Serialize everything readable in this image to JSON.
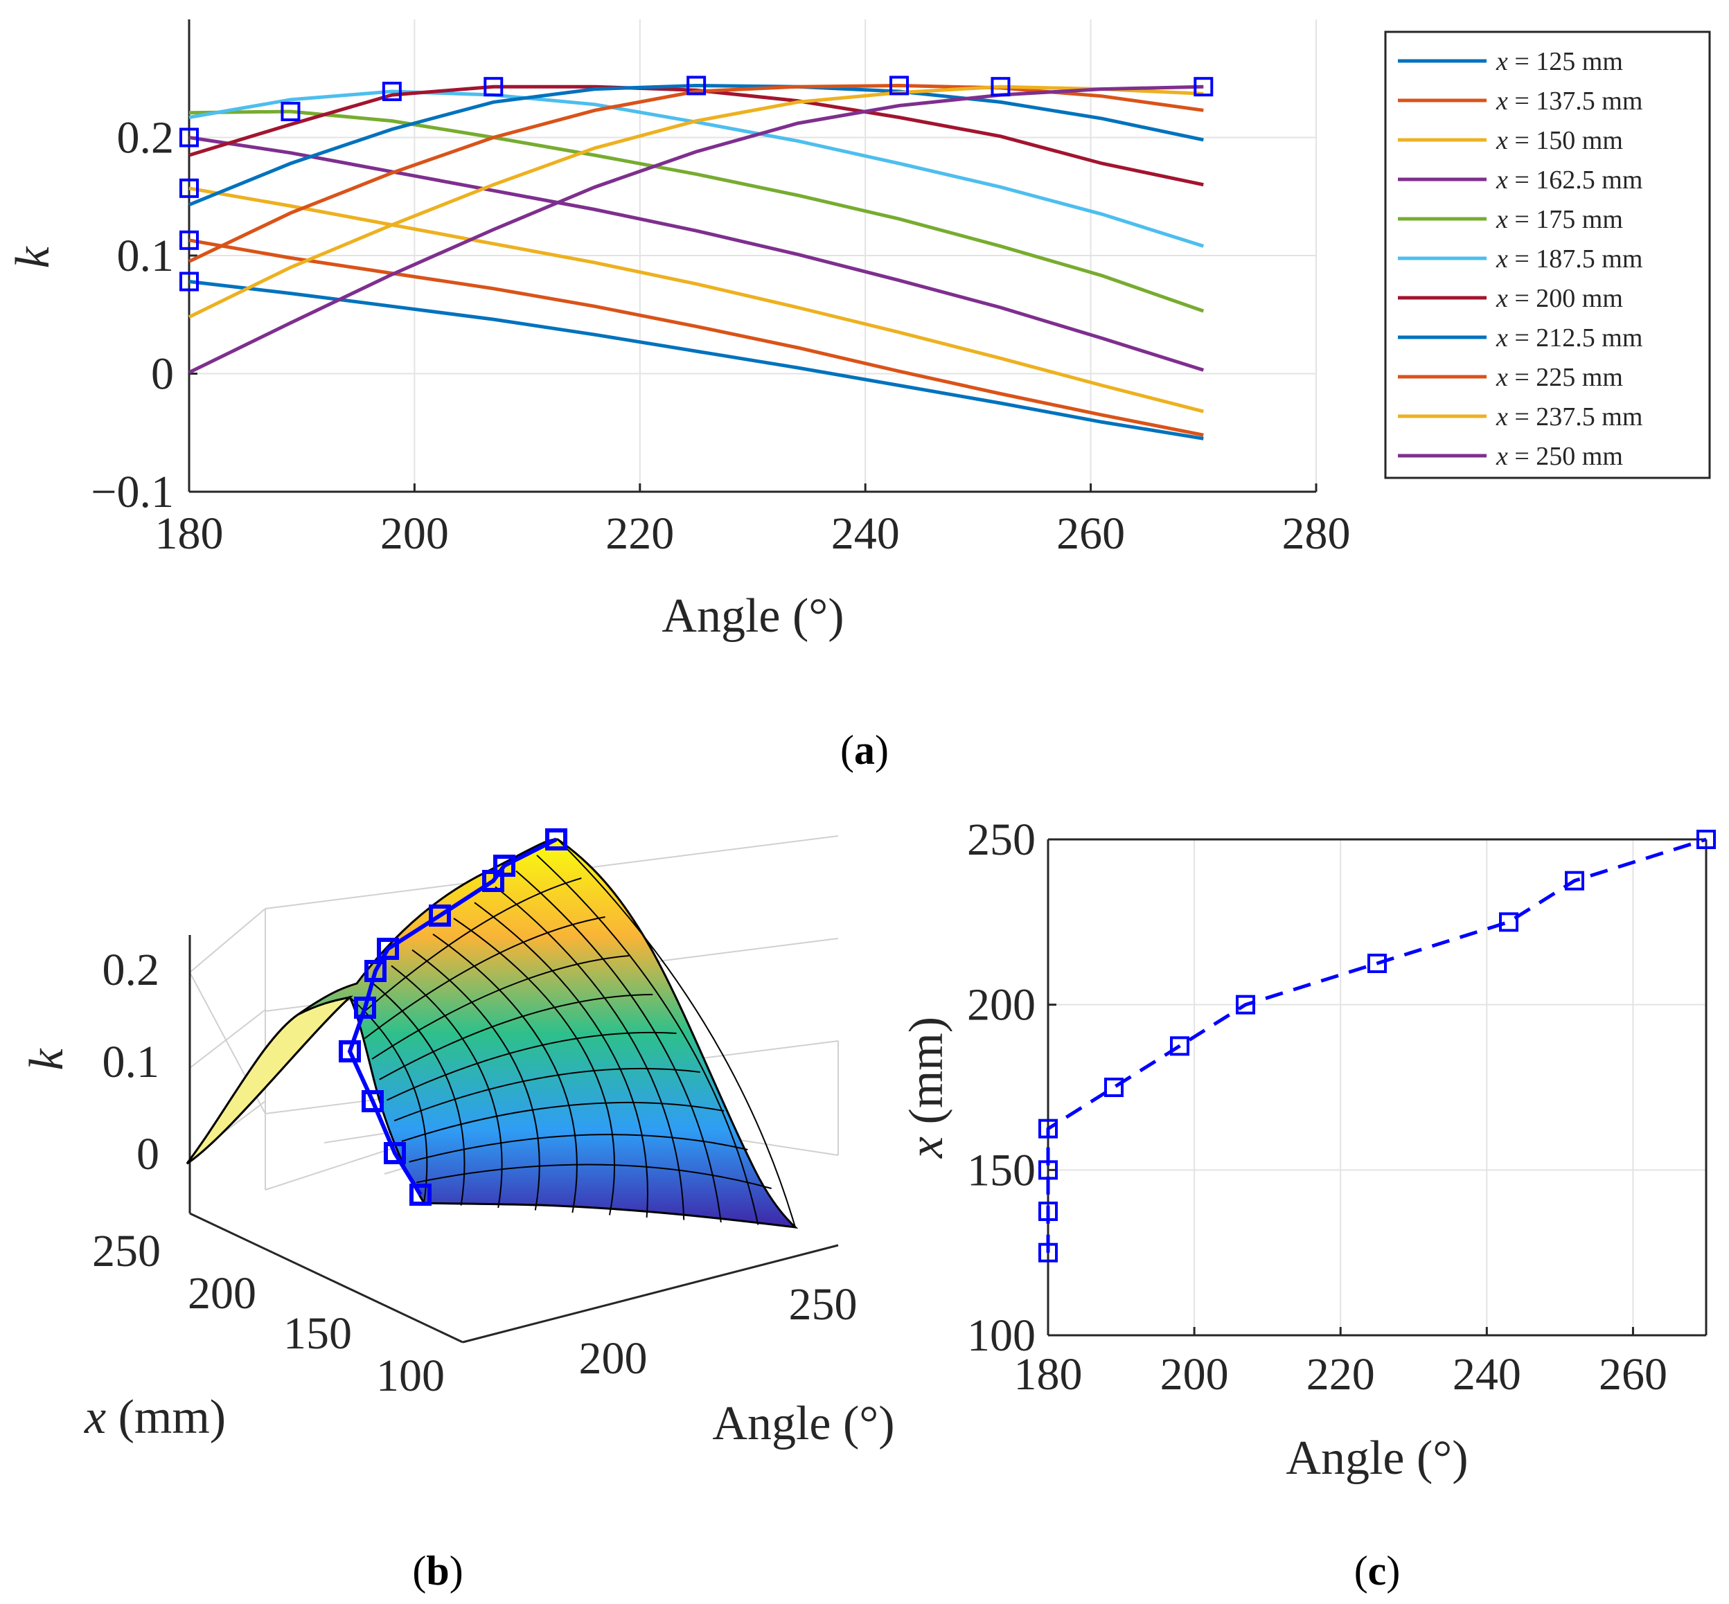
{
  "chart_data": [
    {
      "panel": "(a)",
      "type": "line",
      "xlabel": "Angle (°)",
      "ylabel": "k",
      "xlim": [
        180,
        280
      ],
      "ylim": [
        -0.1,
        0.3
      ],
      "xticks": [
        "180",
        "200",
        "220",
        "240",
        "260",
        "280"
      ],
      "yticks": [
        "−0.1",
        "0",
        "0.1",
        "0.2"
      ],
      "ytick_values": [
        -0.1,
        0,
        0.1,
        0.2
      ],
      "grid": true,
      "legend_position": "outside-right",
      "x": [
        180,
        189,
        198,
        207,
        216,
        225,
        234,
        243,
        252,
        261,
        270
      ],
      "series": [
        {
          "name": "x = 125 mm",
          "var": "x",
          "rest": " = 125 mm",
          "color": "#0072BD",
          "values": [
            0.078,
            0.068,
            0.057,
            0.046,
            0.033,
            0.019,
            0.005,
            -0.01,
            -0.025,
            -0.041,
            -0.055
          ]
        },
        {
          "name": "x = 137.5 mm",
          "var": "x",
          "rest": " = 137.5 mm",
          "color": "#D95319",
          "values": [
            0.113,
            0.098,
            0.085,
            0.072,
            0.057,
            0.04,
            0.022,
            0.002,
            -0.017,
            -0.035,
            -0.052
          ]
        },
        {
          "name": "x = 150 mm",
          "var": "x",
          "rest": " = 150 mm",
          "color": "#EDB120",
          "values": [
            0.157,
            0.142,
            0.126,
            0.11,
            0.094,
            0.076,
            0.056,
            0.035,
            0.013,
            -0.01,
            -0.032
          ]
        },
        {
          "name": "x = 162.5 mm",
          "var": "x",
          "rest": " = 162.5 mm",
          "color": "#7E2F8E",
          "values": [
            0.2,
            0.187,
            0.171,
            0.155,
            0.139,
            0.121,
            0.101,
            0.079,
            0.056,
            0.03,
            0.003
          ]
        },
        {
          "name": "x = 175 mm",
          "var": "x",
          "rest": " = 175 mm",
          "color": "#77AC30",
          "values": [
            0.221,
            0.222,
            0.214,
            0.2,
            0.185,
            0.169,
            0.151,
            0.131,
            0.108,
            0.083,
            0.053
          ]
        },
        {
          "name": "x = 187.5 mm",
          "var": "x",
          "rest": " = 187.5 mm",
          "color": "#4DBEEE",
          "values": [
            0.217,
            0.232,
            0.239,
            0.236,
            0.228,
            0.213,
            0.197,
            0.178,
            0.158,
            0.135,
            0.108
          ]
        },
        {
          "name": "x = 200 mm",
          "var": "x",
          "rest": " = 200 mm",
          "color": "#A2142F",
          "values": [
            0.185,
            0.211,
            0.236,
            0.243,
            0.243,
            0.24,
            0.231,
            0.217,
            0.201,
            0.178,
            0.16
          ]
        },
        {
          "name": "x = 212.5 mm",
          "var": "x",
          "rest": " = 212.5 mm",
          "color": "#0072BD",
          "values": [
            0.143,
            0.178,
            0.207,
            0.23,
            0.241,
            0.244,
            0.243,
            0.239,
            0.23,
            0.216,
            0.198
          ]
        },
        {
          "name": "x = 225 mm",
          "var": "x",
          "rest": " = 225 mm",
          "color": "#D95319",
          "values": [
            0.095,
            0.136,
            0.17,
            0.2,
            0.223,
            0.239,
            0.243,
            0.244,
            0.242,
            0.235,
            0.223
          ]
        },
        {
          "name": "x = 237.5 mm",
          "var": "x",
          "rest": " = 237.5 mm",
          "color": "#EDB120",
          "values": [
            0.048,
            0.09,
            0.126,
            0.16,
            0.191,
            0.214,
            0.23,
            0.238,
            0.243,
            0.241,
            0.237
          ]
        },
        {
          "name": "x = 250 mm",
          "var": "x",
          "rest": " = 250 mm",
          "color": "#7E2F8E",
          "values": [
            0.001,
            0.043,
            0.084,
            0.122,
            0.158,
            0.188,
            0.212,
            0.227,
            0.236,
            0.241,
            0.243
          ]
        }
      ],
      "markers": {
        "color": "#0000FF",
        "x": [
          180,
          180,
          180,
          180,
          189,
          198,
          207,
          225,
          243,
          252,
          270
        ],
        "y": [
          0.078,
          0.113,
          0.157,
          0.2,
          0.222,
          0.239,
          0.243,
          0.244,
          0.244,
          0.243,
          0.243
        ]
      }
    },
    {
      "panel": "(b)",
      "type": "surface",
      "xlabel": "Angle (°)",
      "ylabel_var": "x",
      "ylabel_rest": " (mm)",
      "zlabel": "k",
      "zticks": [
        "0",
        "0.1",
        "0.2"
      ],
      "xticks": [
        "200",
        "250"
      ],
      "yticks": [
        "100",
        "150",
        "200",
        "250"
      ]
    },
    {
      "panel": "(c)",
      "type": "line",
      "xlabel": "Angle (°)",
      "ylabel_var": "x",
      "ylabel_rest": " (mm)",
      "xlim": [
        180,
        270
      ],
      "ylim": [
        100,
        250
      ],
      "xticks": [
        "180",
        "200",
        "220",
        "240",
        "260"
      ],
      "xtick_values": [
        180,
        200,
        220,
        240,
        260
      ],
      "yticks": [
        "100",
        "150",
        "200",
        "250"
      ],
      "ytick_values": [
        100,
        150,
        200,
        250
      ],
      "grid": true,
      "series": [
        {
          "color": "#0000FF",
          "style": "dashed",
          "x": [
            180,
            180,
            180,
            180,
            189,
            198,
            207,
            225,
            243,
            252,
            270
          ],
          "y": [
            125,
            137.5,
            150,
            162.5,
            175,
            187.5,
            200,
            212.5,
            225,
            237.5,
            250
          ]
        }
      ]
    }
  ],
  "labels": {
    "a": "a",
    "b": "b",
    "c": "c"
  }
}
